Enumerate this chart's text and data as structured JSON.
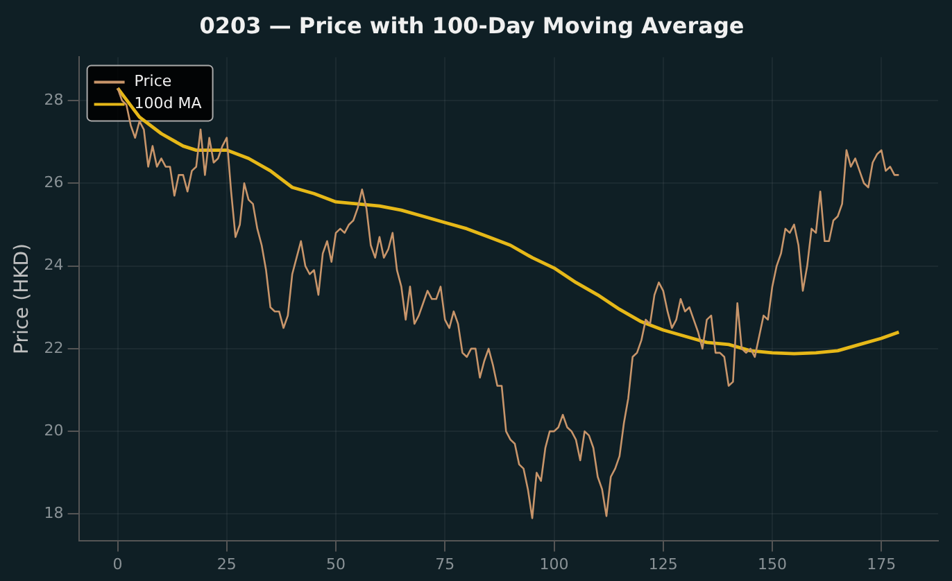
{
  "chart_data": {
    "type": "line",
    "title": "0203 — Price with 100-Day Moving Average",
    "ylabel": "Price (HKD)",
    "x": [
      0,
      1,
      2,
      3,
      4,
      5,
      6,
      7,
      8,
      9,
      10,
      11,
      12,
      13,
      14,
      15,
      16,
      17,
      18,
      19,
      20,
      21,
      22,
      23,
      24,
      25,
      26,
      27,
      28,
      29,
      30,
      31,
      32,
      33,
      34,
      35,
      36,
      37,
      38,
      39,
      40,
      41,
      42,
      43,
      44,
      45,
      46,
      47,
      48,
      49,
      50,
      51,
      52,
      53,
      54,
      55,
      56,
      57,
      58,
      59,
      60,
      61,
      62,
      63,
      64,
      65,
      66,
      67,
      68,
      69,
      70,
      71,
      72,
      73,
      74,
      75,
      76,
      77,
      78,
      79,
      80,
      81,
      82,
      83,
      84,
      85,
      86,
      87,
      88,
      89,
      90,
      91,
      92,
      93,
      94,
      95,
      96,
      97,
      98,
      99,
      100,
      101,
      102,
      103,
      104,
      105,
      106,
      107,
      108,
      109,
      110,
      111,
      112,
      113,
      114,
      115,
      116,
      117,
      118,
      119,
      120,
      121,
      122,
      123,
      124,
      125,
      126,
      127,
      128,
      129,
      130,
      131,
      132,
      133,
      134,
      135,
      136,
      137,
      138,
      139,
      140,
      141,
      142,
      143,
      144,
      145,
      146,
      147,
      148,
      149,
      150,
      151,
      152,
      153,
      154,
      155,
      156,
      157,
      158,
      159,
      160,
      161,
      162,
      163,
      164,
      165,
      166,
      167,
      168,
      169,
      170,
      171,
      172,
      173,
      174,
      175,
      176,
      177,
      178,
      179
    ],
    "series": [
      {
        "name": "Price",
        "color": "#c8956a",
        "values": [
          28.3,
          28.0,
          27.9,
          27.4,
          27.1,
          27.5,
          27.3,
          26.4,
          26.9,
          26.4,
          26.6,
          26.4,
          26.4,
          25.7,
          26.2,
          26.2,
          25.8,
          26.3,
          26.4,
          27.3,
          26.2,
          27.1,
          26.5,
          26.6,
          26.9,
          27.1,
          25.8,
          24.7,
          25.0,
          26.0,
          25.6,
          25.5,
          24.9,
          24.5,
          23.9,
          23.0,
          22.9,
          22.9,
          22.5,
          22.8,
          23.8,
          24.2,
          24.6,
          24.0,
          23.8,
          23.9,
          23.3,
          24.3,
          24.6,
          24.1,
          24.8,
          24.9,
          24.8,
          25.0,
          25.1,
          25.4,
          25.85,
          25.4,
          24.5,
          24.2,
          24.7,
          24.2,
          24.4,
          24.8,
          23.9,
          23.5,
          22.7,
          23.5,
          22.6,
          22.8,
          23.1,
          23.4,
          23.2,
          23.2,
          23.5,
          22.7,
          22.5,
          22.9,
          22.6,
          21.9,
          21.8,
          22.0,
          22.0,
          21.3,
          21.7,
          22.0,
          21.6,
          21.1,
          21.1,
          20.0,
          19.8,
          19.7,
          19.2,
          19.1,
          18.6,
          17.9,
          19.0,
          18.8,
          19.6,
          20.0,
          20.0,
          20.1,
          20.4,
          20.1,
          20.0,
          19.8,
          19.3,
          20.0,
          19.9,
          19.6,
          18.9,
          18.6,
          17.95,
          18.9,
          19.1,
          19.4,
          20.2,
          20.8,
          21.8,
          21.9,
          22.2,
          22.7,
          22.6,
          23.3,
          23.6,
          23.4,
          22.9,
          22.5,
          22.7,
          23.2,
          22.9,
          23.0,
          22.7,
          22.4,
          22.0,
          22.7,
          22.8,
          21.9,
          21.9,
          21.8,
          21.1,
          21.2,
          23.1,
          22.0,
          21.9,
          22.0,
          21.8,
          22.3,
          22.8,
          22.7,
          23.5,
          24.0,
          24.3,
          24.9,
          24.8,
          25.0,
          24.5,
          23.4,
          24.0,
          24.9,
          24.8,
          25.8,
          24.6,
          24.6,
          25.1,
          25.2,
          25.5,
          26.8,
          26.4,
          26.6,
          26.3,
          26.0,
          25.9,
          26.5,
          26.7,
          26.8,
          26.3,
          26.4,
          26.2,
          26.2
        ]
      },
      {
        "name": "100d MA",
        "color": "#e6b818",
        "x": [
          0,
          5,
          10,
          15,
          18,
          25,
          30,
          35,
          40,
          45,
          50,
          55,
          60,
          65,
          70,
          75,
          80,
          85,
          90,
          95,
          100,
          105,
          110,
          115,
          120,
          125,
          130,
          135,
          140,
          145,
          150,
          155,
          160,
          165,
          170,
          175,
          179
        ],
        "values": [
          28.3,
          27.6,
          27.2,
          26.9,
          26.8,
          26.8,
          26.6,
          26.3,
          25.9,
          25.75,
          25.55,
          25.5,
          25.45,
          25.35,
          25.2,
          25.05,
          24.9,
          24.7,
          24.5,
          24.2,
          23.95,
          23.6,
          23.3,
          22.95,
          22.65,
          22.45,
          22.3,
          22.15,
          22.1,
          21.95,
          21.9,
          21.88,
          21.9,
          21.95,
          22.1,
          22.25,
          22.4
        ]
      }
    ],
    "xlim": [
      -8.9,
      188
    ],
    "xticks": [
      0,
      25,
      50,
      75,
      100,
      125,
      150,
      175
    ],
    "ylim": [
      17.36,
      29.05
    ],
    "yticks": [
      18,
      20,
      22,
      24,
      26,
      28
    ],
    "grid": true,
    "legend": "top left"
  }
}
